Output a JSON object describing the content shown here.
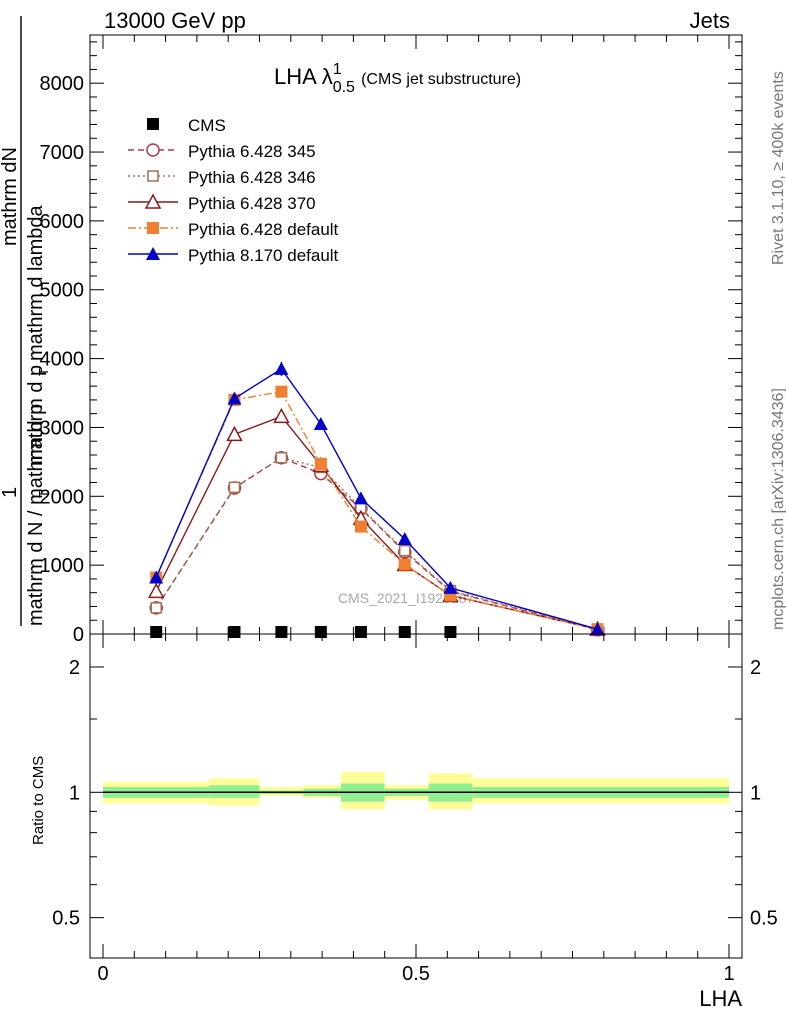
{
  "header": {
    "energy_label": "13000 GeV pp",
    "category_label": "Jets"
  },
  "side_labels": {
    "rivet": "Rivet 3.1.10, ≥ 400k events",
    "mcplots": "mcplots.cern.ch [arXiv:1306.3436]"
  },
  "watermark": "CMS_2021_I1920187",
  "chart_data": [
    {
      "type": "line",
      "title": "LHA λ",
      "title_superscript": "1",
      "title_subscript": "0.5",
      "title_note": "(CMS jet substructure)",
      "xlabel": "LHA",
      "ylabel": {
        "numerator_top": "mathrm dN",
        "numerator_bottom": "mathrm d p",
        "subscript": "T",
        "fraction_tail": "mathrm d lambda",
        "prefactor": "1",
        "denominator": "mathrm d N / mathrm d p",
        "denominator_subscript": "T"
      },
      "xlim": [
        0,
        1
      ],
      "ylim": [
        0,
        8700
      ],
      "yticks": [
        0,
        1000,
        2000,
        3000,
        4000,
        5000,
        6000,
        7000,
        8000
      ],
      "ytick_labels": [
        "0",
        "1000",
        "2000",
        "3000",
        "4000",
        "5000",
        "6000",
        "7000",
        "8000"
      ],
      "legend_position": "top-left",
      "series": [
        {
          "name": "CMS",
          "color": "#000000",
          "marker": "square-filled",
          "line": "none",
          "x": [
            0.085,
            0.21,
            0.285,
            0.348,
            0.412,
            0.482,
            0.555
          ],
          "y": [
            0,
            0,
            0,
            0,
            0,
            0,
            0
          ]
        },
        {
          "name": "Pythia 6.428 345",
          "color": "#b03a48",
          "marker": "circle-open",
          "line": "dashed",
          "x": [
            0.085,
            0.21,
            0.285,
            0.348,
            0.412,
            0.482,
            0.555,
            0.79
          ],
          "y": [
            380,
            2120,
            2560,
            2330,
            1820,
            1190,
            620,
            60
          ]
        },
        {
          "name": "Pythia 6.428 346",
          "color": "#a07050",
          "marker": "square-open",
          "line": "dotted",
          "x": [
            0.085,
            0.21,
            0.285,
            0.348,
            0.412,
            0.482,
            0.555,
            0.79
          ],
          "y": [
            380,
            2130,
            2560,
            2420,
            1830,
            1210,
            630,
            70
          ]
        },
        {
          "name": "Pythia 6.428 370",
          "color": "#8b1a1a",
          "marker": "triangle-open",
          "line": "solid",
          "x": [
            0.085,
            0.21,
            0.285,
            0.348,
            0.412,
            0.482,
            0.555,
            0.79
          ],
          "y": [
            620,
            2900,
            3160,
            2450,
            1680,
            1010,
            560,
            70
          ]
        },
        {
          "name": "Pythia 6.428 default",
          "color": "#f08030",
          "marker": "square-filled",
          "line": "dashdot",
          "x": [
            0.085,
            0.21,
            0.285,
            0.348,
            0.412,
            0.482,
            0.555,
            0.79
          ],
          "y": [
            820,
            3400,
            3520,
            2470,
            1560,
            1010,
            560,
            70
          ]
        },
        {
          "name": "Pythia 8.170 default",
          "color": "#0000cc",
          "marker": "triangle-filled",
          "line": "solid",
          "x": [
            0.085,
            0.21,
            0.285,
            0.348,
            0.412,
            0.482,
            0.555,
            0.79
          ],
          "y": [
            820,
            3420,
            3850,
            3050,
            1970,
            1380,
            670,
            70
          ],
          "yerr": [
            30,
            80,
            100,
            80,
            60,
            50,
            30,
            5
          ]
        }
      ]
    },
    {
      "type": "area",
      "ylabel": "Ratio to CMS",
      "xlabel": "LHA",
      "xlim": [
        0,
        1
      ],
      "ylim": [
        0.4,
        2.4
      ],
      "scale": "log",
      "yticks": [
        0.5,
        1,
        2
      ],
      "ytick_labels": [
        "0.5",
        "1",
        "2"
      ],
      "xticks": [
        0,
        0.5,
        1
      ],
      "xtick_labels": [
        "0",
        "0.5",
        "1"
      ],
      "reference_line": 1,
      "bins": [
        {
          "x0": 0.0,
          "x1": 0.17,
          "inner": [
            0.97,
            1.03
          ],
          "outer": [
            0.94,
            1.06
          ]
        },
        {
          "x0": 0.17,
          "x1": 0.25,
          "inner": [
            0.97,
            1.04
          ],
          "outer": [
            0.93,
            1.08
          ]
        },
        {
          "x0": 0.25,
          "x1": 0.32,
          "inner": [
            0.99,
            1.01
          ],
          "outer": [
            0.98,
            1.03
          ]
        },
        {
          "x0": 0.32,
          "x1": 0.38,
          "inner": [
            0.98,
            1.02
          ],
          "outer": [
            0.97,
            1.04
          ]
        },
        {
          "x0": 0.38,
          "x1": 0.45,
          "inner": [
            0.95,
            1.05
          ],
          "outer": [
            0.91,
            1.12
          ]
        },
        {
          "x0": 0.45,
          "x1": 0.52,
          "inner": [
            0.98,
            1.02
          ],
          "outer": [
            0.96,
            1.04
          ]
        },
        {
          "x0": 0.52,
          "x1": 0.59,
          "inner": [
            0.95,
            1.05
          ],
          "outer": [
            0.91,
            1.11
          ]
        },
        {
          "x0": 0.59,
          "x1": 1.0,
          "inner": [
            0.97,
            1.03
          ],
          "outer": [
            0.94,
            1.08
          ]
        }
      ],
      "band_colors": {
        "inner": "#90f090",
        "outer": "#ffff99"
      }
    }
  ]
}
